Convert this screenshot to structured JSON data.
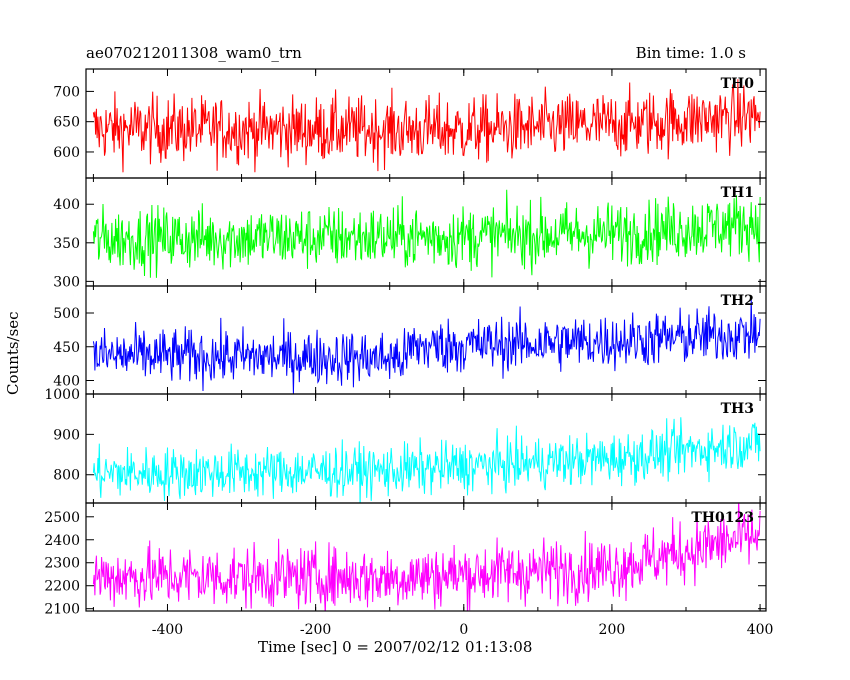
{
  "header": {
    "object_name": "ae070212011308_wam0_trn",
    "bin_time": "Bin time: 1.0 s"
  },
  "chart_data": {
    "type": "line",
    "xlabel": "Time [sec] 0 = 2007/02/12 01:13:08",
    "ylabel": "Counts/sec",
    "xlim": [
      -510,
      408
    ],
    "x_ticks": [
      -400,
      -200,
      0,
      200,
      400
    ],
    "x_start": -500,
    "x_end": 400,
    "x_step": 1,
    "panels": [
      {
        "name": "TH0",
        "color": "#ff0000",
        "ylim": [
          557,
          737
        ],
        "y_ticks": [
          600,
          650,
          700
        ],
        "trend": [
          {
            "x": -500,
            "y": 638
          },
          {
            "x": 0,
            "y": 636
          },
          {
            "x": 200,
            "y": 645
          },
          {
            "x": 400,
            "y": 660
          }
        ],
        "noise": 60
      },
      {
        "name": "TH1",
        "color": "#00ff00",
        "ylim": [
          294,
          434
        ],
        "y_ticks": [
          300,
          350,
          400
        ],
        "trend": [
          {
            "x": -500,
            "y": 355
          },
          {
            "x": 0,
            "y": 358
          },
          {
            "x": 200,
            "y": 362
          },
          {
            "x": 400,
            "y": 375
          }
        ],
        "noise": 45
      },
      {
        "name": "TH2",
        "color": "#0000ff",
        "ylim": [
          380,
          540
        ],
        "y_ticks": [
          400,
          450,
          500
        ],
        "trend": [
          {
            "x": -500,
            "y": 437
          },
          {
            "x": -80,
            "y": 433
          },
          {
            "x": -70,
            "y": 450
          },
          {
            "x": 200,
            "y": 458
          },
          {
            "x": 400,
            "y": 470
          }
        ],
        "noise": 45
      },
      {
        "name": "TH3",
        "color": "#00ffff",
        "ylim": [
          730,
          1000
        ],
        "y_ticks": [
          800,
          900,
          1000
        ],
        "trend": [
          {
            "x": -500,
            "y": 803
          },
          {
            "x": -100,
            "y": 810
          },
          {
            "x": 200,
            "y": 840
          },
          {
            "x": 400,
            "y": 880
          }
        ],
        "noise": 70
      },
      {
        "name": "TH0123",
        "color": "#ff00ff",
        "ylim": [
          2090,
          2560
        ],
        "y_ticks": [
          2100,
          2200,
          2300,
          2400,
          2500
        ],
        "trend": [
          {
            "x": -500,
            "y": 2240
          },
          {
            "x": -100,
            "y": 2235
          },
          {
            "x": 200,
            "y": 2280
          },
          {
            "x": 400,
            "y": 2420
          }
        ],
        "noise": 150
      }
    ]
  }
}
